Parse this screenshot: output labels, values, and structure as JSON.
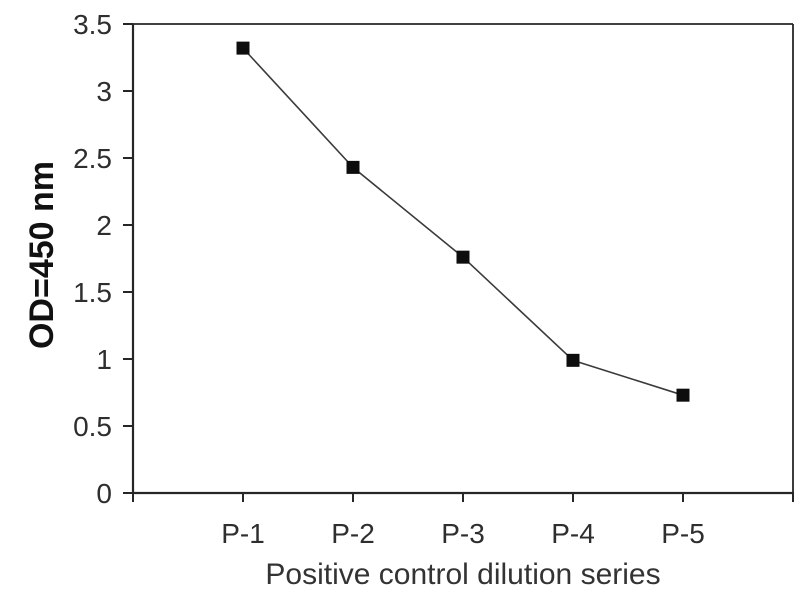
{
  "chart_data": {
    "type": "line",
    "categories": [
      "P-1",
      "P-2",
      "P-3",
      "P-4",
      "P-5"
    ],
    "values": [
      3.32,
      2.43,
      1.76,
      0.99,
      0.73
    ],
    "title": "",
    "xlabel": "Positive control dilution series",
    "ylabel": "OD=450 nm",
    "ylim": [
      0,
      3.5
    ],
    "ytick_labels": [
      "0",
      "0.5",
      "1",
      "1.5",
      "2",
      "2.5",
      "3",
      "3.5"
    ],
    "grid": false,
    "legend": false,
    "marker": "filled-square",
    "colors": {
      "series_line": "#3a3a3a",
      "marker_fill": "#0d0d0d",
      "axis": "#262626",
      "tick_text": "#2e2e2e",
      "title_text": "#333333"
    }
  }
}
